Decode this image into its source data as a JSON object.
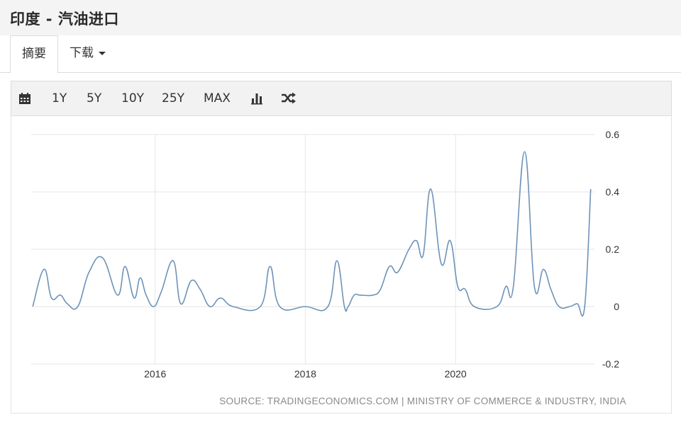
{
  "page": {
    "title": "印度 - 汽油进口",
    "tabs": {
      "summary": "摘要",
      "download": "下载"
    },
    "toolbar": {
      "r1": "1Y",
      "r5": "5Y",
      "r10": "10Y",
      "r25": "25Y",
      "rmax": "MAX"
    },
    "icons": [
      "calendar-icon",
      "bar-chart-icon",
      "shuffle-icon"
    ],
    "source": "SOURCE: TRADINGECONOMICS.COM | MINISTRY OF COMMERCE & INDUSTRY, INDIA"
  },
  "chart_data": {
    "type": "line",
    "title": "",
    "xlabel": "",
    "ylabel": "",
    "ylim": [
      -0.2,
      0.6
    ],
    "xlim": [
      2014.35,
      2021.85
    ],
    "yticks": [
      0.6,
      0.4,
      0.2,
      0,
      -0.2
    ],
    "yticklabels": [
      "0.6",
      "0.4",
      "0.2",
      "0",
      "-0.2"
    ],
    "xticks": [
      2016,
      2018,
      2020
    ],
    "xticklabels": [
      "2016",
      "2018",
      "2020"
    ],
    "grid": true,
    "line_color": "#6d93b8",
    "series": [
      {
        "name": "",
        "x": [
          2014.37,
          2014.52,
          2014.62,
          2014.74,
          2014.83,
          2014.97,
          2015.12,
          2015.3,
          2015.5,
          2015.6,
          2015.72,
          2015.8,
          2015.88,
          2015.98,
          2016.08,
          2016.24,
          2016.34,
          2016.48,
          2016.6,
          2016.73,
          2016.87,
          2017.04,
          2017.4,
          2017.53,
          2017.66,
          2018.0,
          2018.3,
          2018.42,
          2018.52,
          2018.57,
          2018.65,
          2018.73,
          2018.9,
          2019.0,
          2019.12,
          2019.23,
          2019.38,
          2019.48,
          2019.57,
          2019.67,
          2019.81,
          2019.93,
          2020.03,
          2020.13,
          2020.25,
          2020.55,
          2020.67,
          2020.77,
          2020.92,
          2021.05,
          2021.17,
          2021.27,
          2021.38,
          2021.52,
          2021.62,
          2021.72,
          2021.8
        ],
        "y": [
          0.0,
          0.13,
          0.03,
          0.04,
          0.01,
          0.0,
          0.12,
          0.17,
          0.04,
          0.14,
          0.03,
          0.1,
          0.04,
          0.0,
          0.05,
          0.16,
          0.01,
          0.09,
          0.06,
          0.0,
          0.03,
          0.0,
          0.0,
          0.14,
          0.0,
          0.0,
          0.0,
          0.16,
          0.0,
          0.0,
          0.04,
          0.04,
          0.04,
          0.06,
          0.14,
          0.12,
          0.2,
          0.23,
          0.18,
          0.41,
          0.15,
          0.23,
          0.07,
          0.06,
          0.0,
          0.0,
          0.07,
          0.07,
          0.54,
          0.07,
          0.13,
          0.06,
          0.0,
          0.0,
          0.01,
          0.0,
          0.41
        ]
      }
    ]
  }
}
